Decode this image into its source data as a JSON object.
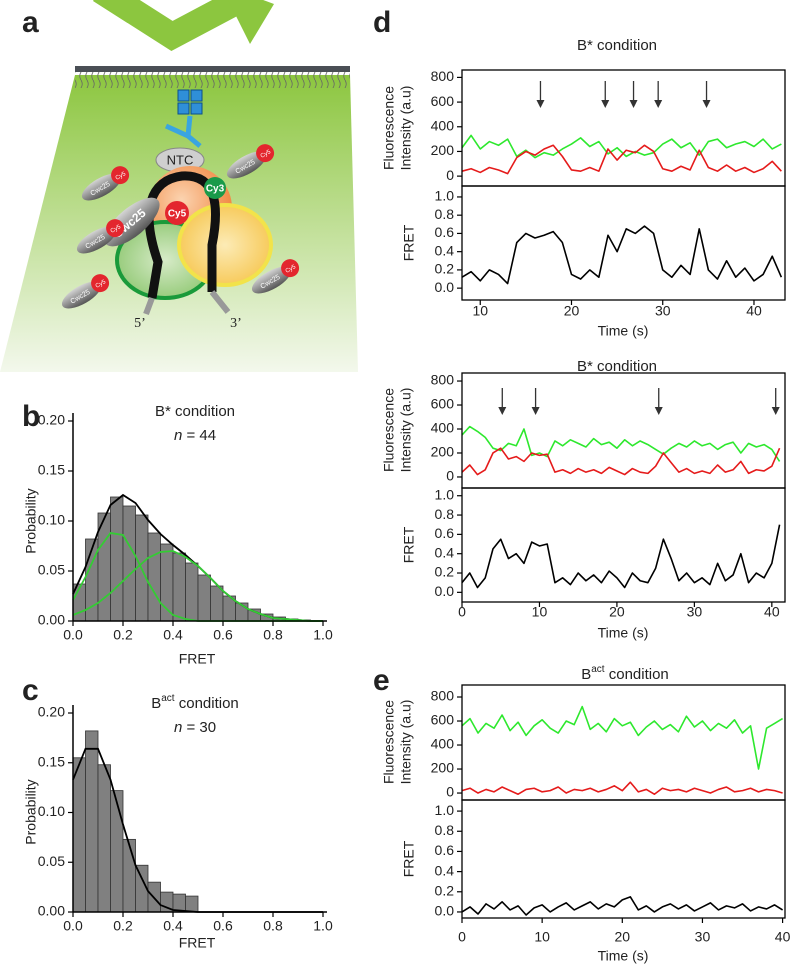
{
  "schematic": {
    "panel": "a",
    "labels": [
      "NTC",
      "Cy3",
      "Cwc25",
      "Cy5",
      "5’",
      "3’"
    ],
    "free_complex": [
      [
        "Cwc25",
        "Cy5"
      ],
      [
        "Cwc25",
        "Cy5"
      ],
      [
        "Cwc25",
        "Cy5"
      ],
      [
        "Cwc25",
        "Cy5"
      ],
      [
        "Cwc25",
        "Cy5"
      ]
    ]
  },
  "chart_data": [
    {
      "type": "histogram",
      "panel": "b",
      "title": "B* condition",
      "annotation": [
        "n",
        " = 44"
      ],
      "xlabel": "FRET",
      "ylabel": "Probability",
      "bins": [
        0,
        0.05,
        0.1,
        0.15,
        0.2,
        0.25,
        0.3,
        0.35,
        0.4,
        0.45,
        0.5,
        0.55,
        0.6,
        0.65,
        0.7,
        0.75,
        0.8,
        0.85,
        0.9,
        0.95,
        1
      ],
      "values": [
        0.037,
        0.082,
        0.108,
        0.124,
        0.115,
        0.106,
        0.088,
        0.077,
        0.068,
        0.058,
        0.046,
        0.035,
        0.025,
        0.018,
        0.012,
        0.007,
        0.004,
        0.002,
        0.001,
        0
      ],
      "color": "#808080",
      "xlim": [
        0,
        1
      ],
      "ylim": [
        0,
        0.2
      ],
      "xticks": [
        {
          "value": 0,
          "label": "0.0"
        },
        {
          "value": 0.2,
          "label": "0.2"
        },
        {
          "value": 0.4,
          "label": "0.4"
        },
        {
          "value": 0.6,
          "label": "0.6"
        },
        {
          "value": 0.8,
          "label": "0.8"
        },
        {
          "value": 1,
          "label": "1.0"
        }
      ],
      "yticks": [
        {
          "value": 0,
          "label": "0.00"
        },
        {
          "value": 0.05,
          "label": "0.05"
        },
        {
          "value": 0.1,
          "label": "0.10"
        },
        {
          "value": 0.15,
          "label": "0.15"
        },
        {
          "value": 0.2,
          "label": "0.20"
        }
      ],
      "fit_x": [
        0,
        0.05,
        0.1,
        0.15,
        0.2,
        0.25,
        0.3,
        0.35,
        0.4,
        0.45,
        0.5,
        0.55,
        0.6,
        0.65,
        0.7,
        0.75,
        0.8,
        0.85,
        0.9,
        0.95,
        1
      ],
      "fits": [
        {
          "color": "#000000",
          "values": [
            0.027,
            0.054,
            0.089,
            0.116,
            0.126,
            0.118,
            0.101,
            0.087,
            0.076,
            0.066,
            0.055,
            0.043,
            0.03,
            0.02,
            0.012,
            0.007,
            0.003,
            0.002,
            0.001,
            0,
            0
          ]
        },
        {
          "color": "#33cc33",
          "values": [
            0.021,
            0.044,
            0.071,
            0.088,
            0.086,
            0.065,
            0.039,
            0.018,
            0.006,
            0.002,
            0,
            0,
            0,
            0,
            0,
            0,
            0,
            0,
            0,
            0,
            0
          ]
        },
        {
          "color": "#33cc33",
          "values": [
            0.006,
            0.011,
            0.018,
            0.028,
            0.04,
            0.052,
            0.063,
            0.069,
            0.07,
            0.064,
            0.055,
            0.043,
            0.03,
            0.02,
            0.012,
            0.007,
            0.003,
            0.002,
            0.001,
            0,
            0
          ]
        }
      ]
    },
    {
      "type": "histogram",
      "panel": "c",
      "title": [
        "B",
        "act",
        " condition"
      ],
      "annotation": [
        "n",
        " = 30"
      ],
      "xlabel": "FRET",
      "ylabel": "Probability",
      "bins": [
        0,
        0.05,
        0.1,
        0.15,
        0.2,
        0.25,
        0.3,
        0.35,
        0.4,
        0.45,
        0.5,
        0.55,
        0.6,
        0.65,
        0.7,
        0.75,
        0.8,
        0.85,
        0.9,
        0.95,
        1
      ],
      "values": [
        0.155,
        0.182,
        0.148,
        0.122,
        0.073,
        0.047,
        0.03,
        0.02,
        0.018,
        0.016,
        0,
        0,
        0,
        0,
        0,
        0,
        0,
        0,
        0,
        0
      ],
      "color": "#808080",
      "xlim": [
        0,
        1
      ],
      "ylim": [
        0,
        0.2
      ],
      "xticks": [
        {
          "value": 0,
          "label": "0.0"
        },
        {
          "value": 0.2,
          "label": "0.2"
        },
        {
          "value": 0.4,
          "label": "0.4"
        },
        {
          "value": 0.6,
          "label": "0.6"
        },
        {
          "value": 0.8,
          "label": "0.8"
        },
        {
          "value": 1,
          "label": "1.0"
        }
      ],
      "yticks": [
        {
          "value": 0,
          "label": "0.00"
        },
        {
          "value": 0.05,
          "label": "0.05"
        },
        {
          "value": 0.1,
          "label": "0.10"
        },
        {
          "value": 0.15,
          "label": "0.15"
        },
        {
          "value": 0.2,
          "label": "0.20"
        }
      ],
      "fit_x": [
        0,
        0.05,
        0.1,
        0.15,
        0.2,
        0.25,
        0.3,
        0.35,
        0.4,
        0.45,
        0.5,
        0.55,
        0.6,
        0.65,
        0.7,
        0.75,
        0.8,
        0.85,
        0.9,
        0.95,
        1
      ],
      "fits": [
        {
          "color": "#000000",
          "values": [
            0.133,
            0.164,
            0.164,
            0.133,
            0.088,
            0.047,
            0.021,
            0.007,
            0.002,
            0.001,
            0,
            0,
            0,
            0,
            0,
            0,
            0,
            0,
            0,
            0,
            0
          ]
        }
      ]
    },
    {
      "type": "trace",
      "panel": "d",
      "title": "B* condition",
      "xlabel": "Time (s)",
      "x": [
        8,
        9,
        10,
        11,
        12,
        13,
        14,
        15,
        16,
        17,
        18,
        19,
        20,
        21,
        22,
        23,
        24,
        25,
        26,
        27,
        28,
        29,
        30,
        31,
        32,
        33,
        34,
        35,
        36,
        37,
        38,
        39,
        40,
        41,
        42,
        43
      ],
      "xlim": [
        8,
        43.4
      ],
      "xticks": [
        10,
        20,
        30,
        40
      ],
      "arrows": [
        16.6,
        23.7,
        26.8,
        29.5,
        34.8
      ],
      "intensity": {
        "ylabel": [
          "Fluorescence",
          "Intensity (a.u)"
        ],
        "ylim": [
          -80,
          860
        ],
        "yticks": [
          0,
          200,
          400,
          600,
          800
        ],
        "series": [
          {
            "color": "#2ee82e",
            "values": [
              230,
              330,
              220,
              280,
              250,
              300,
              160,
              210,
              150,
              190,
              170,
              220,
              260,
              310,
              240,
              280,
              180,
              230,
              160,
              200,
              170,
              190,
              260,
              300,
              230,
              270,
              170,
              280,
              300,
              230,
              260,
              280,
              240,
              300,
              220,
              260
            ]
          },
          {
            "color": "#e51b1b",
            "values": [
              40,
              60,
              30,
              70,
              50,
              20,
              150,
              200,
              170,
              220,
              250,
              160,
              50,
              40,
              70,
              40,
              220,
              130,
              210,
              190,
              250,
              200,
              60,
              40,
              80,
              50,
              210,
              70,
              40,
              90,
              40,
              70,
              30,
              60,
              120,
              40
            ]
          }
        ]
      },
      "fret": {
        "ylabel": "FRET",
        "ylim": [
          -0.13,
          1.12
        ],
        "yticks": [
          {
            "value": 0,
            "label": "0.0"
          },
          {
            "value": 0.2,
            "label": "0.2"
          },
          {
            "value": 0.4,
            "label": "0.4"
          },
          {
            "value": 0.6,
            "label": "0.6"
          },
          {
            "value": 0.8,
            "label": "0.8"
          },
          {
            "value": 1,
            "label": "1.0"
          }
        ],
        "series": [
          {
            "color": "#000000",
            "values": [
              0.12,
              0.18,
              0.08,
              0.2,
              0.15,
              0.05,
              0.5,
              0.6,
              0.55,
              0.58,
              0.62,
              0.5,
              0.15,
              0.1,
              0.2,
              0.12,
              0.58,
              0.4,
              0.65,
              0.6,
              0.68,
              0.6,
              0.2,
              0.12,
              0.25,
              0.15,
              0.65,
              0.2,
              0.1,
              0.3,
              0.12,
              0.22,
              0.08,
              0.15,
              0.35,
              0.12
            ]
          }
        ]
      }
    },
    {
      "type": "trace",
      "title": "B* condition",
      "xlabel": "Time (s)",
      "x": [
        0,
        1,
        2,
        3,
        4,
        5,
        6,
        7,
        8,
        9,
        10,
        11,
        12,
        13,
        14,
        15,
        16,
        17,
        18,
        19,
        20,
        21,
        22,
        23,
        24,
        25,
        26,
        27,
        28,
        29,
        30,
        31,
        32,
        33,
        34,
        35,
        36,
        37,
        38,
        39,
        40,
        41
      ],
      "xlim": [
        0,
        41.7
      ],
      "xticks": [
        0,
        10,
        20,
        30,
        40
      ],
      "arrows": [
        5.2,
        9.5,
        25.4,
        40.5
      ],
      "intensity": {
        "ylabel": [
          "Fluorescence",
          "Intensity (a.u)"
        ],
        "ylim": [
          -92,
          867
        ],
        "yticks": [
          0,
          200,
          400,
          600,
          800
        ],
        "series": [
          {
            "color": "#2ee82e",
            "values": [
              350,
              420,
              380,
              330,
              240,
              220,
              280,
              260,
              400,
              180,
              200,
              170,
              300,
              260,
              310,
              280,
              250,
              320,
              270,
              290,
              240,
              310,
              260,
              300,
              270,
              230,
              190,
              240,
              280,
              250,
              300,
              260,
              280,
              230,
              270,
              290,
              200,
              280,
              250,
              270,
              230,
              130
            ]
          },
          {
            "color": "#e51b1b",
            "values": [
              40,
              100,
              20,
              60,
              200,
              240,
              150,
              170,
              130,
              200,
              180,
              190,
              40,
              60,
              30,
              70,
              40,
              60,
              30,
              80,
              50,
              20,
              70,
              40,
              30,
              90,
              200,
              120,
              40,
              70,
              30,
              50,
              30,
              100,
              40,
              60,
              130,
              30,
              60,
              50,
              90,
              240
            ]
          }
        ]
      },
      "fret": {
        "ylabel": "FRET",
        "ylim": [
          -0.1,
          1.08
        ],
        "yticks": [
          {
            "value": 0,
            "label": "0.0"
          },
          {
            "value": 0.2,
            "label": "0.2"
          },
          {
            "value": 0.4,
            "label": "0.4"
          },
          {
            "value": 0.6,
            "label": "0.6"
          },
          {
            "value": 0.8,
            "label": "0.8"
          },
          {
            "value": 1,
            "label": "1.0"
          }
        ],
        "series": [
          {
            "color": "#000000",
            "values": [
              0.1,
              0.2,
              0.05,
              0.15,
              0.45,
              0.55,
              0.35,
              0.4,
              0.3,
              0.52,
              0.48,
              0.5,
              0.1,
              0.15,
              0.08,
              0.2,
              0.12,
              0.18,
              0.1,
              0.22,
              0.15,
              0.05,
              0.2,
              0.12,
              0.1,
              0.25,
              0.55,
              0.35,
              0.12,
              0.2,
              0.1,
              0.15,
              0.08,
              0.3,
              0.12,
              0.18,
              0.4,
              0.1,
              0.2,
              0.15,
              0.3,
              0.7
            ]
          }
        ]
      }
    },
    {
      "type": "trace",
      "panel": "e",
      "title": [
        "B",
        "act",
        " condition"
      ],
      "xlabel": "Time (s)",
      "x": [
        0,
        1,
        2,
        3,
        4,
        5,
        6,
        7,
        8,
        9,
        10,
        11,
        12,
        13,
        14,
        15,
        16,
        17,
        18,
        19,
        20,
        21,
        22,
        23,
        24,
        25,
        26,
        27,
        28,
        29,
        30,
        31,
        32,
        33,
        34,
        35,
        36,
        37,
        38,
        39,
        40
      ],
      "xlim": [
        0,
        40.3
      ],
      "xticks": [
        0,
        10,
        20,
        30,
        40
      ],
      "intensity": {
        "ylabel": [
          "Fluorescence",
          "Intensity (a.u)"
        ],
        "ylim": [
          -58,
          900
        ],
        "yticks": [
          0,
          200,
          400,
          600,
          800
        ],
        "series": [
          {
            "color": "#2ee82e",
            "values": [
              560,
              620,
              500,
              580,
              540,
              650,
              520,
              590,
              480,
              560,
              610,
              540,
              500,
              600,
              570,
              720,
              530,
              580,
              510,
              620,
              560,
              590,
              480,
              550,
              600,
              530,
              570,
              510,
              640,
              550,
              600,
              520,
              580,
              540,
              610,
              500,
              560,
              200,
              540,
              580,
              620
            ]
          },
          {
            "color": "#e51b1b",
            "values": [
              20,
              40,
              0,
              30,
              10,
              50,
              20,
              -10,
              30,
              40,
              10,
              20,
              50,
              0,
              30,
              20,
              40,
              10,
              30,
              60,
              20,
              90,
              10,
              30,
              -10,
              40,
              20,
              30,
              10,
              40,
              20,
              0,
              30,
              50,
              10,
              20,
              40,
              10,
              30,
              20,
              0
            ]
          }
        ]
      },
      "fret": {
        "ylabel": "FRET",
        "ylim": [
          -0.06,
          1.11
        ],
        "yticks": [
          {
            "value": 0,
            "label": "0.0"
          },
          {
            "value": 0.2,
            "label": "0.2"
          },
          {
            "value": 0.4,
            "label": "0.4"
          },
          {
            "value": 0.6,
            "label": "0.6"
          },
          {
            "value": 0.8,
            "label": "0.8"
          },
          {
            "value": 1,
            "label": "1.0"
          }
        ],
        "series": [
          {
            "color": "#000000",
            "values": [
              0,
              0.05,
              -0.02,
              0.08,
              0.03,
              0.1,
              0.02,
              0.06,
              -0.03,
              0.04,
              0.07,
              0,
              0.05,
              0.09,
              0.02,
              0.06,
              0.1,
              0.03,
              0.08,
              0.05,
              0.12,
              0.15,
              0.02,
              0.06,
              0,
              0.05,
              0.08,
              0.03,
              0.07,
              0.01,
              0.05,
              0.09,
              0.02,
              0.06,
              0.04,
              0.08,
              0.01,
              0.05,
              0.03,
              0.07,
              0.02
            ]
          }
        ]
      }
    }
  ]
}
